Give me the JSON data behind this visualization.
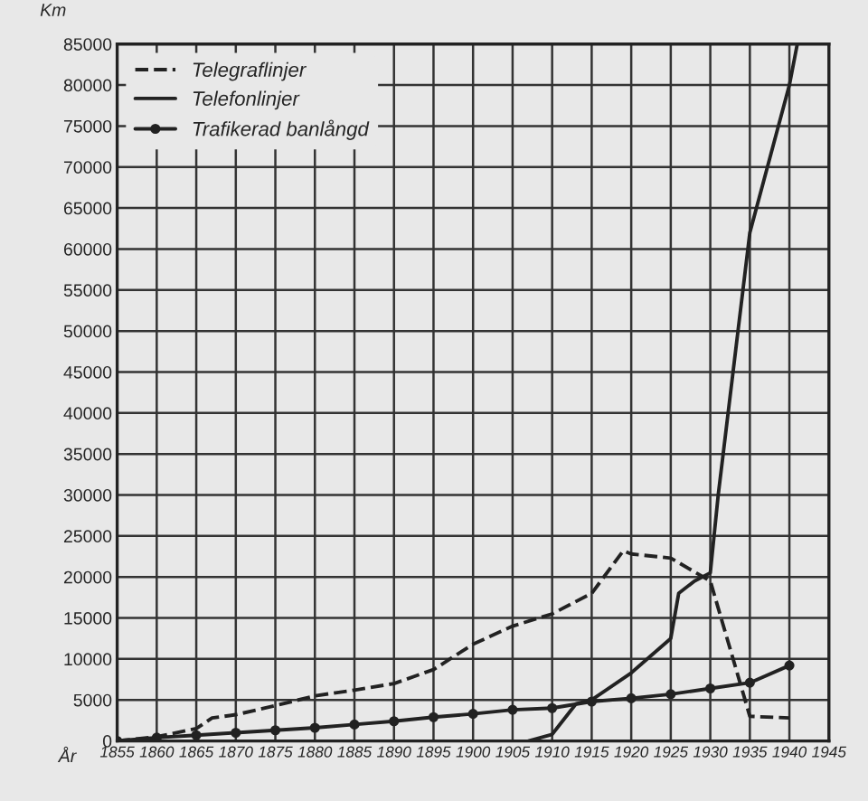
{
  "chart_data": {
    "type": "line",
    "xlabel": "År",
    "ylabel": "Km",
    "xlim": [
      1855,
      1945
    ],
    "xticks": [
      1855,
      1860,
      1865,
      1870,
      1875,
      1880,
      1885,
      1890,
      1895,
      1900,
      1905,
      1910,
      1915,
      1920,
      1925,
      1930,
      1935,
      1940,
      1945
    ],
    "ylim": [
      0,
      85000
    ],
    "yticks": [
      0,
      5000,
      10000,
      15000,
      20000,
      25000,
      30000,
      35000,
      40000,
      45000,
      50000,
      55000,
      60000,
      65000,
      70000,
      75000,
      80000,
      85000
    ],
    "grid": true,
    "legend": "top left",
    "series": [
      {
        "name": "Telegraflinjer",
        "color": "#222222",
        "line_style": "dashed",
        "marker": "none",
        "x": [
          1855,
          1860,
          1865,
          1867,
          1870,
          1875,
          1880,
          1885,
          1890,
          1895,
          1900,
          1905,
          1910,
          1915,
          1919,
          1920,
          1925,
          1930,
          1935,
          1940
        ],
        "values": [
          0,
          500,
          1500,
          2800,
          3200,
          4300,
          5500,
          6200,
          7000,
          8700,
          11800,
          14000,
          15500,
          18000,
          23200,
          22800,
          22300,
          19500,
          3000,
          2800
        ]
      },
      {
        "name": "Telefonlinjer",
        "color": "#222222",
        "line_style": "solid",
        "marker": "none",
        "x": [
          1907,
          1910,
          1913,
          1915,
          1920,
          1925,
          1926,
          1928,
          1930,
          1931,
          1935,
          1940,
          1941
        ],
        "values": [
          0,
          800,
          4500,
          5000,
          8300,
          12500,
          18000,
          19500,
          20500,
          30000,
          62000,
          80000,
          85000
        ]
      },
      {
        "name": "Trafikerad banlångd",
        "color": "#222222",
        "line_style": "solid",
        "marker": "circle",
        "x": [
          1855,
          1860,
          1865,
          1870,
          1875,
          1880,
          1885,
          1890,
          1895,
          1900,
          1905,
          1910,
          1915,
          1920,
          1925,
          1930,
          1935,
          1940
        ],
        "values": [
          0,
          400,
          700,
          1000,
          1300,
          1600,
          2000,
          2400,
          2900,
          3300,
          3800,
          4000,
          4800,
          5200,
          5700,
          6400,
          7100,
          9200
        ]
      }
    ]
  }
}
